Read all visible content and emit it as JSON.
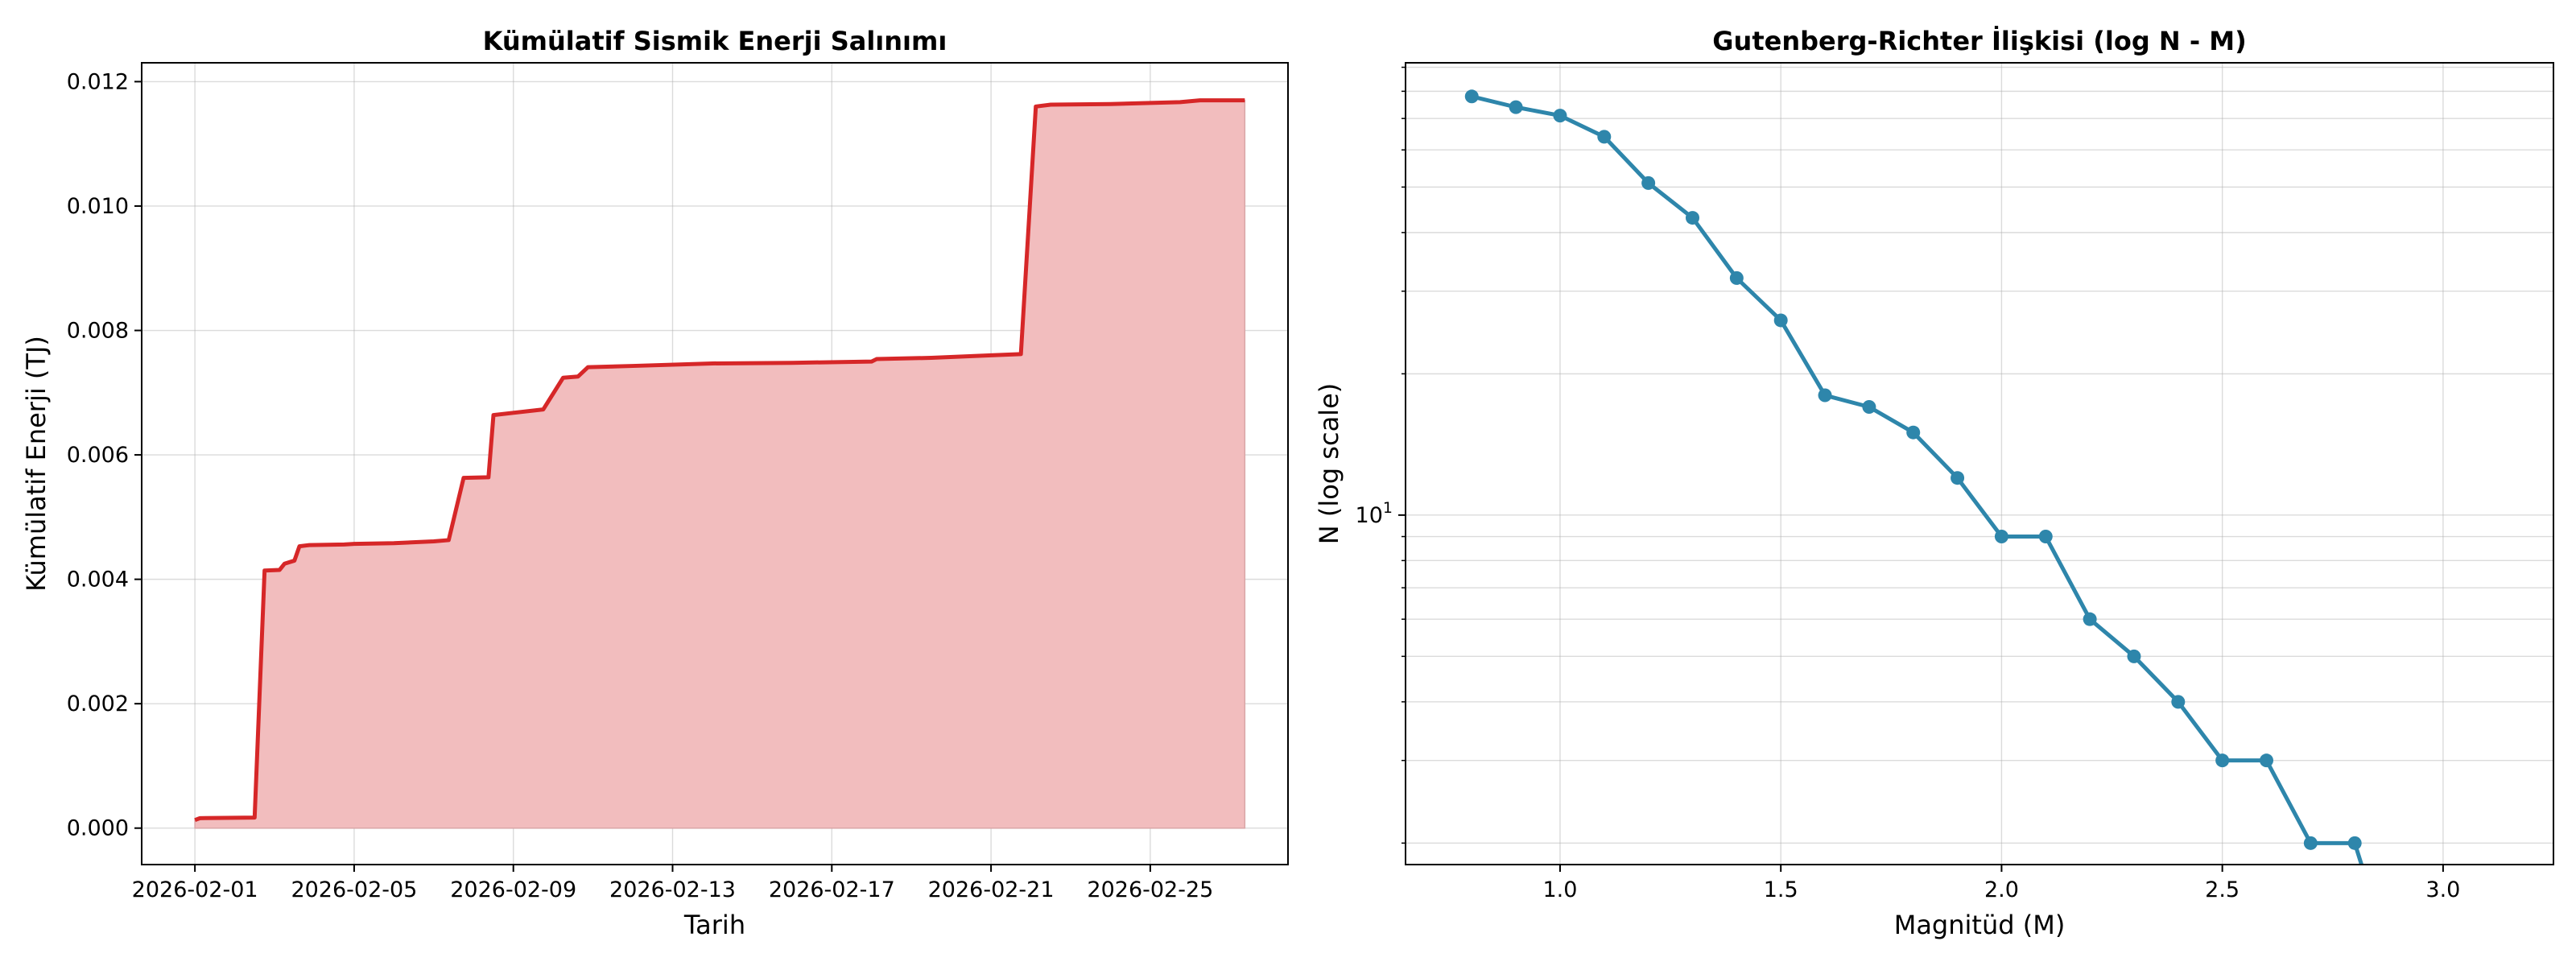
{
  "chart_data": [
    {
      "type": "area",
      "title": "Kümülatif Sismik Enerji Salınımı",
      "xlabel": "Tarih",
      "ylabel": "Kümülatif Enerji (TJ)",
      "xlim": [
        "2026-01-30T15:54",
        "2026-02-28T11:03"
      ],
      "ylim": [
        -0.000586,
        0.012303
      ],
      "x_ticks": [
        "2026-02-01",
        "2026-02-05",
        "2026-02-09",
        "2026-02-13",
        "2026-02-17",
        "2026-02-21",
        "2026-02-25"
      ],
      "y_ticks": [
        "0.000",
        "0.002",
        "0.004",
        "0.006",
        "0.008",
        "0.010",
        "0.012"
      ],
      "grid": true,
      "legend": "none",
      "series": [
        {
          "color": "#d62728",
          "fill_color": "#f2bdbe",
          "points": [
            {
              "x": "2026-02-01T00:00",
              "y": 0.00013
            },
            {
              "x": "2026-02-01T03:00",
              "y": 0.00016
            },
            {
              "x": "2026-02-02T12:00",
              "y": 0.00017
            },
            {
              "x": "2026-02-02T18:00",
              "y": 0.00414
            },
            {
              "x": "2026-02-03T03:00",
              "y": 0.00415
            },
            {
              "x": "2026-02-03T06:00",
              "y": 0.00425
            },
            {
              "x": "2026-02-03T12:00",
              "y": 0.0043
            },
            {
              "x": "2026-02-03T15:00",
              "y": 0.00453
            },
            {
              "x": "2026-02-03T21:00",
              "y": 0.00455
            },
            {
              "x": "2026-02-04T18:00",
              "y": 0.00456
            },
            {
              "x": "2026-02-05T00:00",
              "y": 0.00457
            },
            {
              "x": "2026-02-06T00:00",
              "y": 0.00458
            },
            {
              "x": "2026-02-07T00:00",
              "y": 0.00461
            },
            {
              "x": "2026-02-07T09:00",
              "y": 0.00463
            },
            {
              "x": "2026-02-07T18:00",
              "y": 0.00563
            },
            {
              "x": "2026-02-08T09:00",
              "y": 0.00564
            },
            {
              "x": "2026-02-08T12:00",
              "y": 0.00664
            },
            {
              "x": "2026-02-09T18:00",
              "y": 0.00673
            },
            {
              "x": "2026-02-10T06:00",
              "y": 0.00724
            },
            {
              "x": "2026-02-10T15:00",
              "y": 0.00726
            },
            {
              "x": "2026-02-10T21:00",
              "y": 0.00741
            },
            {
              "x": "2026-02-12T00:00",
              "y": 0.00743
            },
            {
              "x": "2026-02-14T00:00",
              "y": 0.00747
            },
            {
              "x": "2026-02-16T00:00",
              "y": 0.00748
            },
            {
              "x": "2026-02-18T00:00",
              "y": 0.0075
            },
            {
              "x": "2026-02-18T03:00",
              "y": 0.00754
            },
            {
              "x": "2026-02-19T12:00",
              "y": 0.00756
            },
            {
              "x": "2026-02-21T00:00",
              "y": 0.0076
            },
            {
              "x": "2026-02-21T18:00",
              "y": 0.00762
            },
            {
              "x": "2026-02-22T03:00",
              "y": 0.0116
            },
            {
              "x": "2026-02-22T12:00",
              "y": 0.01163
            },
            {
              "x": "2026-02-24T00:00",
              "y": 0.01164
            },
            {
              "x": "2026-02-25T18:00",
              "y": 0.01167
            },
            {
              "x": "2026-02-26T06:00",
              "y": 0.0117
            },
            {
              "x": "2026-02-27T09:00",
              "y": 0.0117
            }
          ]
        }
      ]
    },
    {
      "type": "line",
      "title": "Gutenberg-Richter İlişkisi (log N - M)",
      "xlabel": "Magnitüd (M)",
      "ylabel": "N (log scale)",
      "y_scale": "log",
      "xlim": [
        0.65,
        3.25
      ],
      "ylim": [
        1.8,
        92
      ],
      "x_ticks": [
        "1.0",
        "1.5",
        "2.0",
        "2.5",
        "3.0"
      ],
      "y_ticks": [
        {
          "value": 10,
          "base": "10",
          "exp": "1"
        }
      ],
      "grid": true,
      "legend": "none",
      "series": [
        {
          "color": "#2e86ab",
          "points": [
            {
              "x": 0.8,
              "y": 78
            },
            {
              "x": 0.9,
              "y": 74
            },
            {
              "x": 1.0,
              "y": 71
            },
            {
              "x": 1.1,
              "y": 64
            },
            {
              "x": 1.2,
              "y": 51
            },
            {
              "x": 1.3,
              "y": 43
            },
            {
              "x": 1.4,
              "y": 32
            },
            {
              "x": 1.5,
              "y": 26
            },
            {
              "x": 1.6,
              "y": 18
            },
            {
              "x": 1.7,
              "y": 17
            },
            {
              "x": 1.8,
              "y": 15
            },
            {
              "x": 1.9,
              "y": 12
            },
            {
              "x": 2.0,
              "y": 9
            },
            {
              "x": 2.1,
              "y": 9
            },
            {
              "x": 2.2,
              "y": 6
            },
            {
              "x": 2.3,
              "y": 5
            },
            {
              "x": 2.4,
              "y": 4
            },
            {
              "x": 2.5,
              "y": 3
            },
            {
              "x": 2.6,
              "y": 3
            },
            {
              "x": 2.7,
              "y": 2
            },
            {
              "x": 2.8,
              "y": 2
            },
            {
              "x": 2.9,
              "y": 1
            }
          ]
        }
      ]
    }
  ]
}
